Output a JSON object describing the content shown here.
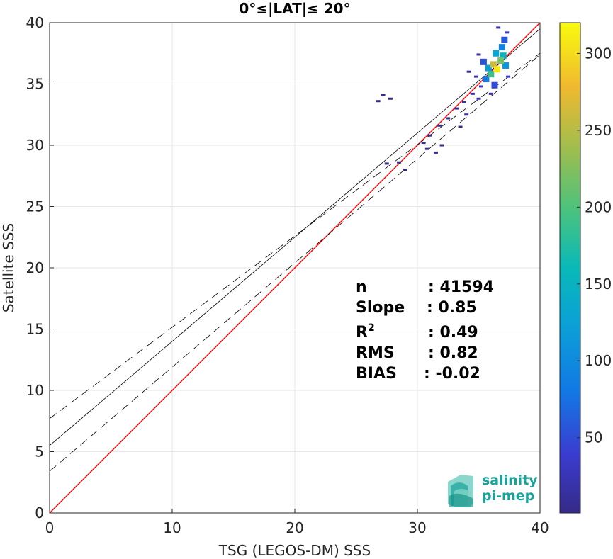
{
  "chart_data": {
    "type": "scatter",
    "subtype": "density-heatmap",
    "title": "0°≤|LAT|≤ 20°",
    "xlabel": "TSG (LEGOS-DM) SSS",
    "ylabel": "Satellite SSS",
    "xlim": [
      0,
      40
    ],
    "ylim": [
      0,
      40
    ],
    "x_ticks": [
      "0",
      "10",
      "20",
      "30",
      "40"
    ],
    "y_ticks": [
      "0",
      "5",
      "10",
      "15",
      "20",
      "25",
      "30",
      "35",
      "40"
    ],
    "grid": true,
    "lines": {
      "identity": {
        "color": "#ff0000",
        "x": [
          0,
          40
        ],
        "y": [
          0,
          40
        ]
      },
      "regression": {
        "color": "#000000",
        "style": "solid",
        "intercept": 5.5,
        "slope": 0.85
      },
      "upper_bound": {
        "color": "#000000",
        "style": "dashed",
        "intercept": 7.7,
        "slope": 0.745
      },
      "lower_bound": {
        "color": "#000000",
        "style": "dashed",
        "intercept": 3.4,
        "slope": 0.85
      }
    },
    "density_points": [
      {
        "x": 36.5,
        "y": 36.2,
        "count": 310
      },
      {
        "x": 36.2,
        "y": 36.6,
        "count": 260
      },
      {
        "x": 36.8,
        "y": 36.9,
        "count": 220
      },
      {
        "x": 36.0,
        "y": 35.8,
        "count": 190
      },
      {
        "x": 37.0,
        "y": 37.3,
        "count": 150
      },
      {
        "x": 36.4,
        "y": 37.5,
        "count": 130
      },
      {
        "x": 35.8,
        "y": 36.3,
        "count": 120
      },
      {
        "x": 37.2,
        "y": 36.5,
        "count": 110
      },
      {
        "x": 36.9,
        "y": 38.0,
        "count": 90
      },
      {
        "x": 35.6,
        "y": 35.4,
        "count": 80
      },
      {
        "x": 37.1,
        "y": 38.6,
        "count": 60
      },
      {
        "x": 35.4,
        "y": 36.8,
        "count": 55
      },
      {
        "x": 36.3,
        "y": 34.9,
        "count": 50
      },
      {
        "x": 37.3,
        "y": 39.2,
        "count": 35
      },
      {
        "x": 35.2,
        "y": 34.8,
        "count": 30
      },
      {
        "x": 34.8,
        "y": 35.6,
        "count": 25
      },
      {
        "x": 34.5,
        "y": 34.2,
        "count": 20
      },
      {
        "x": 35.0,
        "y": 33.8,
        "count": 18
      },
      {
        "x": 33.8,
        "y": 33.5,
        "count": 15
      },
      {
        "x": 33.2,
        "y": 33.0,
        "count": 12
      },
      {
        "x": 34.0,
        "y": 32.5,
        "count": 10
      },
      {
        "x": 32.5,
        "y": 32.2,
        "count": 8
      },
      {
        "x": 31.8,
        "y": 31.6,
        "count": 6
      },
      {
        "x": 33.5,
        "y": 31.5,
        "count": 5
      },
      {
        "x": 31.0,
        "y": 30.8,
        "count": 4
      },
      {
        "x": 30.5,
        "y": 30.2,
        "count": 3
      },
      {
        "x": 32.0,
        "y": 30.0,
        "count": 3
      },
      {
        "x": 31.5,
        "y": 29.4,
        "count": 2
      },
      {
        "x": 30.8,
        "y": 29.7,
        "count": 2
      },
      {
        "x": 27.2,
        "y": 34.1,
        "count": 2
      },
      {
        "x": 27.8,
        "y": 33.8,
        "count": 2
      },
      {
        "x": 26.8,
        "y": 33.6,
        "count": 1
      },
      {
        "x": 28.5,
        "y": 28.6,
        "count": 1
      },
      {
        "x": 27.5,
        "y": 28.5,
        "count": 1
      },
      {
        "x": 29.0,
        "y": 28.0,
        "count": 1
      },
      {
        "x": 36.6,
        "y": 39.6,
        "count": 20
      },
      {
        "x": 35.0,
        "y": 37.4,
        "count": 12
      },
      {
        "x": 34.2,
        "y": 36.0,
        "count": 8
      },
      {
        "x": 37.4,
        "y": 35.6,
        "count": 40
      },
      {
        "x": 36.0,
        "y": 34.2,
        "count": 15
      }
    ],
    "colorbar": {
      "range": [
        1,
        320
      ],
      "ticks": [
        "50",
        "100",
        "150",
        "200",
        "250",
        "300"
      ]
    },
    "stats": [
      {
        "label": "n",
        "value": ": 41594"
      },
      {
        "label": "Slope",
        "value": ": 0.85"
      },
      {
        "label": "R",
        "label_sup": "2",
        "value": ": 0.49"
      },
      {
        "label": "RMS",
        "value": ": 0.82"
      },
      {
        "label": "BIAS",
        "value": ": -0.02"
      }
    ]
  },
  "logo": {
    "line1": "salinity",
    "line2": "pi-mep"
  }
}
